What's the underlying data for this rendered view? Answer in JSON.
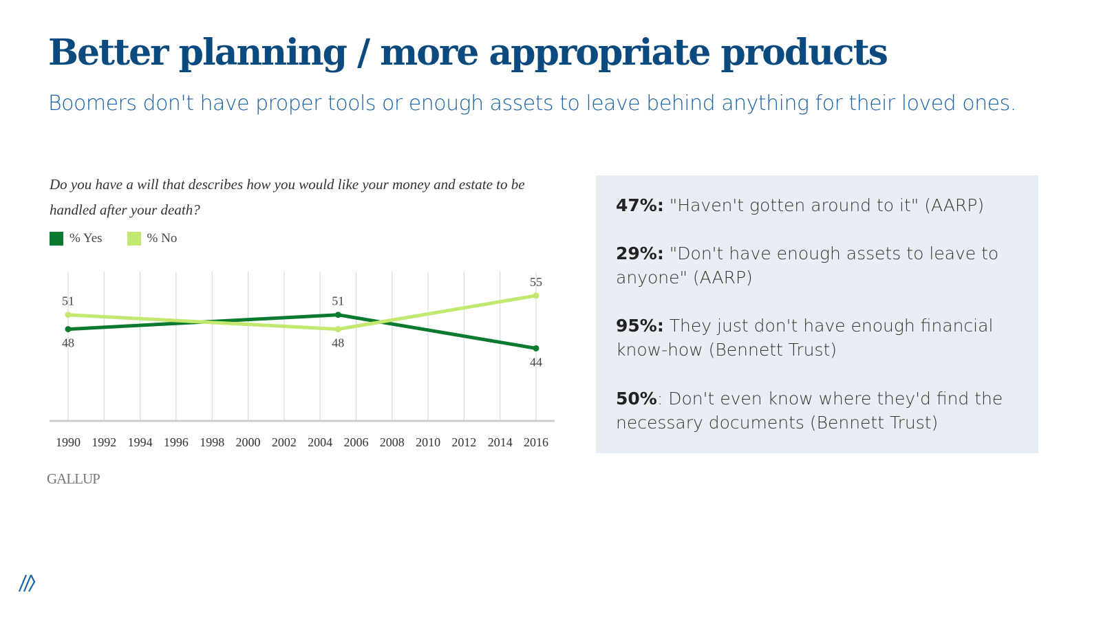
{
  "header": {
    "title": "Better planning / more appropriate products",
    "subtitle": "Boomers don't have proper tools or enough assets to leave behind anything for their loved ones."
  },
  "chart_data": {
    "type": "line",
    "title": "Do you have a will that describes how you would like your money and estate to be handled after your death?",
    "x_ticks": [
      "1990",
      "1992",
      "1994",
      "1996",
      "1998",
      "2000",
      "2002",
      "2004",
      "2006",
      "2008",
      "2010",
      "2012",
      "2014",
      "2016"
    ],
    "xlim": [
      1990,
      2016
    ],
    "ylim": [
      29,
      60
    ],
    "grid": "vertical",
    "legend_placement": "top-left",
    "series": [
      {
        "name": "% Yes",
        "color": "#0a7a2e",
        "points": [
          [
            1990,
            48
          ],
          [
            2005,
            51
          ],
          [
            2016,
            44
          ]
        ],
        "labels": [
          "48",
          "51",
          "44"
        ]
      },
      {
        "name": "% No",
        "color": "#c2e870",
        "points": [
          [
            1990,
            51
          ],
          [
            2005,
            48
          ],
          [
            2016,
            55
          ]
        ],
        "labels": [
          "51",
          "48",
          "55"
        ]
      }
    ],
    "source": "GALLUP"
  },
  "panel": {
    "stats": [
      {
        "value": "47%:",
        "text": " \"Haven't gotten around to it\" (AARP)"
      },
      {
        "value": "29%:",
        "text": " \"Don't have enough assets to leave to anyone\" (AARP)"
      },
      {
        "value": "95%:",
        "text": " They just don't have enough financial know-how (Bennett Trust)"
      },
      {
        "value": "50%",
        "text": ": Don't even know where they'd find the necessary documents (Bennett Trust)"
      }
    ]
  },
  "colors": {
    "title": "#0b4a7e",
    "subtitle": "#1a62a6",
    "panel_bg": "#e8eef4"
  },
  "logo": {
    "icon": "diagonal-stripes-logo-icon"
  }
}
